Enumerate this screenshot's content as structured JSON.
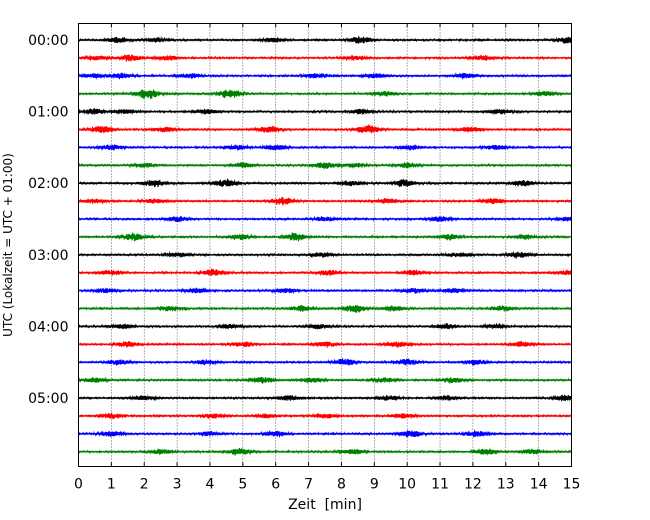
{
  "chart_data": {
    "type": "line",
    "xlabel": "Zeit  [min]",
    "ylabel": "UTC (Lokalzeit = UTC + 01:00)",
    "xlim": [
      0,
      15
    ],
    "x_ticks": [
      "0",
      "1",
      "2",
      "3",
      "4",
      "5",
      "6",
      "7",
      "8",
      "9",
      "10",
      "11",
      "12",
      "13",
      "14",
      "15"
    ],
    "y_ticks": [
      "00:00",
      "01:00",
      "02:00",
      "03:00",
      "04:00",
      "05:00"
    ],
    "y_tick_traces": [
      0,
      4,
      8,
      12,
      16,
      20
    ],
    "trace_count": 24,
    "trace_duration_min": 15,
    "grid": "vertical dotted",
    "series_colors": [
      "#000000",
      "#ff0000",
      "#0000ff",
      "#008000"
    ],
    "bursts": [
      [
        [
          1.2,
          0.35
        ],
        [
          2.4,
          0.25
        ],
        [
          5.9,
          0.3
        ],
        [
          8.6,
          0.45
        ],
        [
          14.9,
          0.5
        ]
      ],
      [
        [
          0.5,
          0.3
        ],
        [
          1.6,
          0.45
        ],
        [
          2.7,
          0.3
        ],
        [
          8.4,
          0.3
        ],
        [
          12.3,
          0.35
        ]
      ],
      [
        [
          0.5,
          0.3
        ],
        [
          1.3,
          0.35
        ],
        [
          3.4,
          0.3
        ],
        [
          7.2,
          0.3
        ],
        [
          9.0,
          0.3
        ],
        [
          11.8,
          0.3
        ]
      ],
      [
        [
          2.1,
          0.7
        ],
        [
          4.6,
          0.6
        ],
        [
          9.3,
          0.3
        ],
        [
          14.2,
          0.3
        ]
      ],
      [
        [
          0.5,
          0.35
        ],
        [
          1.4,
          0.3
        ],
        [
          3.9,
          0.3
        ],
        [
          8.6,
          0.3
        ],
        [
          12.8,
          0.3
        ]
      ],
      [
        [
          0.7,
          0.5
        ],
        [
          2.6,
          0.35
        ],
        [
          5.8,
          0.45
        ],
        [
          8.8,
          0.6
        ],
        [
          11.9,
          0.3
        ]
      ],
      [
        [
          1.0,
          0.35
        ],
        [
          4.8,
          0.3
        ],
        [
          6.0,
          0.35
        ],
        [
          10.1,
          0.3
        ],
        [
          12.7,
          0.3
        ]
      ],
      [
        [
          2.0,
          0.3
        ],
        [
          5.0,
          0.3
        ],
        [
          7.5,
          0.4
        ],
        [
          8.4,
          0.3
        ],
        [
          10.0,
          0.3
        ]
      ],
      [
        [
          2.3,
          0.45
        ],
        [
          4.5,
          0.5
        ],
        [
          8.3,
          0.35
        ],
        [
          9.9,
          0.5
        ],
        [
          13.5,
          0.4
        ]
      ],
      [
        [
          0.5,
          0.25
        ],
        [
          2.3,
          0.3
        ],
        [
          6.2,
          0.5
        ],
        [
          9.4,
          0.3
        ],
        [
          12.6,
          0.35
        ]
      ],
      [
        [
          3.0,
          0.3
        ],
        [
          7.5,
          0.3
        ],
        [
          11.0,
          0.3
        ],
        [
          14.9,
          0.3
        ]
      ],
      [
        [
          1.7,
          0.5
        ],
        [
          4.9,
          0.35
        ],
        [
          6.6,
          0.55
        ],
        [
          11.3,
          0.35
        ],
        [
          13.6,
          0.3
        ]
      ],
      [
        [
          3.0,
          0.3
        ],
        [
          7.4,
          0.3
        ],
        [
          11.6,
          0.3
        ],
        [
          13.4,
          0.4
        ]
      ],
      [
        [
          1.0,
          0.3
        ],
        [
          4.1,
          0.5
        ],
        [
          7.6,
          0.35
        ],
        [
          10.2,
          0.35
        ],
        [
          14.9,
          0.3
        ]
      ],
      [
        [
          0.8,
          0.3
        ],
        [
          3.6,
          0.35
        ],
        [
          6.3,
          0.3
        ],
        [
          10.2,
          0.35
        ],
        [
          11.4,
          0.3
        ]
      ],
      [
        [
          2.8,
          0.3
        ],
        [
          6.8,
          0.35
        ],
        [
          8.4,
          0.5
        ],
        [
          9.6,
          0.35
        ],
        [
          12.9,
          0.3
        ]
      ],
      [
        [
          1.3,
          0.3
        ],
        [
          4.6,
          0.3
        ],
        [
          7.3,
          0.3
        ],
        [
          11.2,
          0.35
        ],
        [
          12.7,
          0.3
        ]
      ],
      [
        [
          1.5,
          0.35
        ],
        [
          5.0,
          0.3
        ],
        [
          7.5,
          0.3
        ],
        [
          9.7,
          0.35
        ],
        [
          13.5,
          0.3
        ]
      ],
      [
        [
          1.2,
          0.3
        ],
        [
          3.9,
          0.3
        ],
        [
          8.1,
          0.45
        ],
        [
          10.0,
          0.4
        ],
        [
          12.1,
          0.35
        ]
      ],
      [
        [
          0.5,
          0.3
        ],
        [
          5.6,
          0.4
        ],
        [
          7.1,
          0.3
        ],
        [
          9.3,
          0.3
        ],
        [
          11.4,
          0.35
        ]
      ],
      [
        [
          2.0,
          0.3
        ],
        [
          6.4,
          0.35
        ],
        [
          9.4,
          0.3
        ],
        [
          11.2,
          0.3
        ],
        [
          14.8,
          0.4
        ]
      ],
      [
        [
          1.0,
          0.3
        ],
        [
          4.1,
          0.35
        ],
        [
          5.7,
          0.25
        ],
        [
          7.5,
          0.3
        ],
        [
          9.9,
          0.3
        ]
      ],
      [
        [
          1.0,
          0.35
        ],
        [
          4.0,
          0.3
        ],
        [
          6.0,
          0.35
        ],
        [
          10.1,
          0.5
        ],
        [
          12.1,
          0.4
        ]
      ],
      [
        [
          2.5,
          0.3
        ],
        [
          4.9,
          0.45
        ],
        [
          8.3,
          0.35
        ],
        [
          12.4,
          0.35
        ],
        [
          13.8,
          0.3
        ]
      ]
    ]
  }
}
